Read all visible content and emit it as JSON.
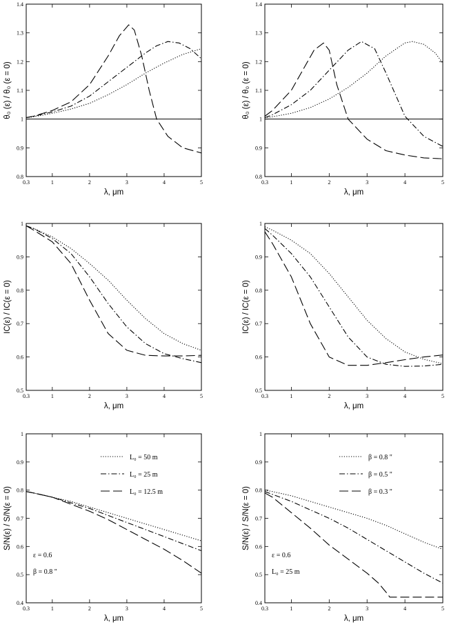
{
  "chart_data": [
    {
      "id": "p1",
      "type": "line",
      "ylabel": "θ₀ (ε) / θ₀ (ε = 0)",
      "xlabel": "λ, μm",
      "xlim": [
        0.3,
        5
      ],
      "ylim": [
        0.8,
        1.4
      ],
      "xticks": [
        0.3,
        1,
        2,
        3,
        4,
        5
      ],
      "xtick_labels": [
        "0.3",
        "1",
        "2",
        "3",
        "4",
        "5"
      ],
      "yticks": [
        0.8,
        0.9,
        1.0,
        1.1,
        1.2,
        1.3,
        1.4
      ],
      "ytick_labels": [
        "0.8",
        "0.9",
        "1",
        "1.1",
        "1.2",
        "1.3",
        "1.4"
      ],
      "hline": 1.0,
      "legend": [],
      "series": [
        {
          "name": "L0 = 50 m",
          "style": "dotted",
          "x": [
            0.3,
            0.5,
            1,
            1.5,
            2,
            2.5,
            3,
            3.5,
            4,
            4.5,
            5
          ],
          "y": [
            1.005,
            1.008,
            1.02,
            1.035,
            1.055,
            1.085,
            1.12,
            1.16,
            1.195,
            1.225,
            1.245
          ]
        },
        {
          "name": "L0 = 25 m",
          "style": "dashdot",
          "x": [
            0.3,
            0.5,
            1,
            1.5,
            2,
            2.5,
            3,
            3.5,
            3.8,
            4.1,
            4.4,
            4.7,
            5
          ],
          "y": [
            1.005,
            1.01,
            1.025,
            1.045,
            1.08,
            1.13,
            1.18,
            1.23,
            1.255,
            1.27,
            1.265,
            1.245,
            1.21
          ]
        },
        {
          "name": "L0 = 12.5 m",
          "style": "longdash",
          "x": [
            0.3,
            0.5,
            1,
            1.5,
            2,
            2.5,
            2.8,
            3.05,
            3.2,
            3.4,
            3.6,
            3.8,
            4.1,
            4.5,
            5
          ],
          "y": [
            1.005,
            1.01,
            1.03,
            1.06,
            1.12,
            1.22,
            1.29,
            1.328,
            1.31,
            1.22,
            1.1,
            1.0,
            0.94,
            0.9,
            0.882
          ]
        }
      ]
    },
    {
      "id": "p2",
      "type": "line",
      "ylabel": "θ₀ (ε) / θ₀ (ε = 0)",
      "xlabel": "λ, μm",
      "xlim": [
        0.3,
        5
      ],
      "ylim": [
        0.8,
        1.4
      ],
      "xticks": [
        0.3,
        1,
        2,
        3,
        4,
        5
      ],
      "xtick_labels": [
        "0.3",
        "1",
        "2",
        "3",
        "4",
        "5"
      ],
      "yticks": [
        0.8,
        0.9,
        1.0,
        1.1,
        1.2,
        1.3,
        1.4
      ],
      "ytick_labels": [
        "0.8",
        "0.9",
        "1",
        "1.1",
        "1.2",
        "1.3",
        "1.4"
      ],
      "hline": 1.0,
      "legend": [],
      "series": [
        {
          "name": "β = 0.8\"",
          "style": "dotted",
          "x": [
            0.3,
            0.5,
            1,
            1.5,
            2,
            2.5,
            3,
            3.5,
            4,
            4.2,
            4.5,
            4.8,
            5
          ],
          "y": [
            1.005,
            1.008,
            1.02,
            1.04,
            1.07,
            1.11,
            1.16,
            1.22,
            1.265,
            1.27,
            1.26,
            1.23,
            1.195
          ]
        },
        {
          "name": "β = 0.5\"",
          "style": "dashdot",
          "x": [
            0.3,
            0.5,
            1,
            1.5,
            2,
            2.5,
            2.85,
            3.2,
            3.5,
            4,
            4.5,
            5
          ],
          "y": [
            1.005,
            1.015,
            1.05,
            1.1,
            1.17,
            1.24,
            1.27,
            1.245,
            1.16,
            1.01,
            0.94,
            0.905
          ]
        },
        {
          "name": "β = 0.3\"",
          "style": "longdash",
          "x": [
            0.3,
            0.5,
            1,
            1.3,
            1.6,
            1.85,
            2.0,
            2.2,
            2.5,
            3,
            3.5,
            4,
            4.5,
            5
          ],
          "y": [
            1.01,
            1.03,
            1.1,
            1.17,
            1.24,
            1.265,
            1.24,
            1.12,
            1.0,
            0.93,
            0.89,
            0.875,
            0.865,
            0.862
          ]
        }
      ]
    },
    {
      "id": "p3",
      "type": "line",
      "ylabel": "IC(ε) / IC(ε = 0)",
      "xlabel": "λ, μm",
      "xlim": [
        0.3,
        5
      ],
      "ylim": [
        0.5,
        1.0
      ],
      "xticks": [
        0.3,
        1,
        2,
        3,
        4,
        5
      ],
      "xtick_labels": [
        "0.3",
        "1",
        "2",
        "3",
        "4",
        "5"
      ],
      "yticks": [
        0.5,
        0.6,
        0.7,
        0.8,
        0.9,
        1.0
      ],
      "ytick_labels": [
        "0.5",
        "0.6",
        "0.7",
        "0.8",
        "0.9",
        "1"
      ],
      "legend": [],
      "series": [
        {
          "name": "L0 = 50 m",
          "style": "dotted",
          "x": [
            0.3,
            0.5,
            1,
            1.5,
            2,
            2.5,
            3,
            3.5,
            4,
            4.5,
            5
          ],
          "y": [
            0.993,
            0.985,
            0.96,
            0.925,
            0.88,
            0.83,
            0.77,
            0.715,
            0.67,
            0.64,
            0.62
          ]
        },
        {
          "name": "L0 = 25 m",
          "style": "dashdot",
          "x": [
            0.3,
            0.5,
            1,
            1.5,
            2,
            2.5,
            3,
            3.5,
            4,
            4.5,
            5
          ],
          "y": [
            0.993,
            0.985,
            0.955,
            0.91,
            0.84,
            0.76,
            0.69,
            0.64,
            0.61,
            0.595,
            0.583
          ]
        },
        {
          "name": "L0 = 12.5 m",
          "style": "longdash",
          "x": [
            0.3,
            0.5,
            1,
            1.5,
            2,
            2.5,
            3,
            3.5,
            4,
            4.5,
            5
          ],
          "y": [
            0.993,
            0.98,
            0.945,
            0.88,
            0.77,
            0.67,
            0.62,
            0.605,
            0.603,
            0.603,
            0.605
          ]
        }
      ]
    },
    {
      "id": "p4",
      "type": "line",
      "ylabel": "IC(ε) / IC(ε = 0)",
      "xlabel": "λ, μm",
      "xlim": [
        0.3,
        5
      ],
      "ylim": [
        0.5,
        1.0
      ],
      "xticks": [
        0.3,
        1,
        2,
        3,
        4,
        5
      ],
      "xtick_labels": [
        "0.3",
        "1",
        "2",
        "3",
        "4",
        "5"
      ],
      "yticks": [
        0.5,
        0.6,
        0.7,
        0.8,
        0.9,
        1.0
      ],
      "ytick_labels": [
        "0.5",
        "0.6",
        "0.7",
        "0.8",
        "0.9",
        "1"
      ],
      "legend": [],
      "series": [
        {
          "name": "β = 0.8\"",
          "style": "dotted",
          "x": [
            0.3,
            0.5,
            1,
            1.5,
            2,
            2.5,
            3,
            3.5,
            4,
            4.5,
            5
          ],
          "y": [
            0.99,
            0.98,
            0.95,
            0.91,
            0.85,
            0.78,
            0.71,
            0.655,
            0.615,
            0.593,
            0.58
          ]
        },
        {
          "name": "β = 0.5\"",
          "style": "dashdot",
          "x": [
            0.3,
            0.5,
            1,
            1.5,
            2,
            2.5,
            3,
            3.5,
            4,
            4.5,
            5
          ],
          "y": [
            0.985,
            0.965,
            0.91,
            0.84,
            0.75,
            0.66,
            0.6,
            0.578,
            0.572,
            0.573,
            0.578
          ]
        },
        {
          "name": "β = 0.3\"",
          "style": "longdash",
          "x": [
            0.3,
            0.5,
            1,
            1.5,
            2,
            2.5,
            3,
            3.5,
            4,
            4.5,
            5
          ],
          "y": [
            0.975,
            0.94,
            0.84,
            0.7,
            0.6,
            0.575,
            0.575,
            0.583,
            0.592,
            0.6,
            0.606
          ]
        }
      ]
    },
    {
      "id": "p5",
      "type": "line",
      "ylabel": "S/N(ε) / S/N(ε = 0)",
      "xlabel": "λ, μm",
      "xlim": [
        0.3,
        5
      ],
      "ylim": [
        0.4,
        1.0
      ],
      "xticks": [
        0.3,
        1,
        2,
        3,
        4,
        5
      ],
      "xtick_labels": [
        "0.3",
        "1",
        "2",
        "3",
        "4",
        "5"
      ],
      "yticks": [
        0.4,
        0.5,
        0.6,
        0.7,
        0.8,
        0.9,
        1.0
      ],
      "ytick_labels": [
        "0.4",
        "0.5",
        "0.6",
        "0.7",
        "0.8",
        "0.9",
        "1"
      ],
      "legend": [
        {
          "style": "dotted",
          "label": "L₀  =  50 m"
        },
        {
          "style": "dashdot",
          "label": "L₀  =  25 m"
        },
        {
          "style": "longdash",
          "label": "L₀  =  12.5 m"
        }
      ],
      "annotations": [
        "ε = 0.6",
        "β = 0.8 \""
      ],
      "series": [
        {
          "name": "L0 = 50 m",
          "style": "dotted",
          "x": [
            0.3,
            0.5,
            1,
            1.5,
            2,
            2.5,
            3,
            3.5,
            4,
            4.5,
            5
          ],
          "y": [
            0.795,
            0.79,
            0.775,
            0.76,
            0.74,
            0.72,
            0.7,
            0.68,
            0.66,
            0.64,
            0.62
          ]
        },
        {
          "name": "L0 = 25 m",
          "style": "dashdot",
          "x": [
            0.3,
            0.5,
            1,
            1.5,
            2,
            2.5,
            3,
            3.5,
            4,
            4.5,
            5
          ],
          "y": [
            0.795,
            0.79,
            0.775,
            0.755,
            0.735,
            0.71,
            0.685,
            0.66,
            0.635,
            0.61,
            0.585
          ]
        },
        {
          "name": "L0 = 12.5 m",
          "style": "longdash",
          "x": [
            0.3,
            0.5,
            1,
            1.5,
            2,
            2.5,
            3,
            3.5,
            4,
            4.5,
            5
          ],
          "y": [
            0.795,
            0.79,
            0.775,
            0.75,
            0.725,
            0.695,
            0.66,
            0.625,
            0.59,
            0.55,
            0.505
          ]
        }
      ]
    },
    {
      "id": "p6",
      "type": "line",
      "ylabel": "S/N(ε) / S/N(ε = 0)",
      "xlabel": "λ, μm",
      "xlim": [
        0.3,
        5
      ],
      "ylim": [
        0.4,
        1.0
      ],
      "xticks": [
        0.3,
        1,
        2,
        3,
        4,
        5
      ],
      "xtick_labels": [
        "0.3",
        "1",
        "2",
        "3",
        "4",
        "5"
      ],
      "yticks": [
        0.4,
        0.5,
        0.6,
        0.7,
        0.8,
        0.9,
        1.0
      ],
      "ytick_labels": [
        "0.4",
        "0.5",
        "0.6",
        "0.7",
        "0.8",
        "0.9",
        "1"
      ],
      "legend": [
        {
          "style": "dotted",
          "label": "β  =  0.8 \""
        },
        {
          "style": "dashdot",
          "label": "β  =  0.5 \""
        },
        {
          "style": "longdash",
          "label": "β  =  0.3 \""
        }
      ],
      "annotations": [
        "ε = 0.6",
        "L₀  =  25 m"
      ],
      "series": [
        {
          "name": "β = 0.8\"",
          "style": "dotted",
          "x": [
            0.3,
            0.5,
            1,
            1.5,
            2,
            2.5,
            3,
            3.5,
            4,
            4.5,
            5
          ],
          "y": [
            0.8,
            0.795,
            0.78,
            0.76,
            0.74,
            0.72,
            0.7,
            0.675,
            0.645,
            0.615,
            0.59
          ]
        },
        {
          "name": "β = 0.5\"",
          "style": "dashdot",
          "x": [
            0.3,
            0.5,
            1,
            1.5,
            2,
            2.5,
            3,
            3.5,
            4,
            4.5,
            5
          ],
          "y": [
            0.795,
            0.785,
            0.76,
            0.73,
            0.7,
            0.665,
            0.625,
            0.585,
            0.545,
            0.505,
            0.47
          ]
        },
        {
          "name": "β = 0.3\"",
          "style": "longdash",
          "x": [
            0.3,
            0.5,
            1,
            1.5,
            2,
            2.5,
            3,
            3.3,
            3.55,
            3.6,
            4,
            4.5,
            5
          ],
          "y": [
            0.79,
            0.775,
            0.72,
            0.665,
            0.605,
            0.555,
            0.505,
            0.47,
            0.43,
            0.42,
            0.42,
            0.42,
            0.42
          ]
        }
      ]
    }
  ]
}
